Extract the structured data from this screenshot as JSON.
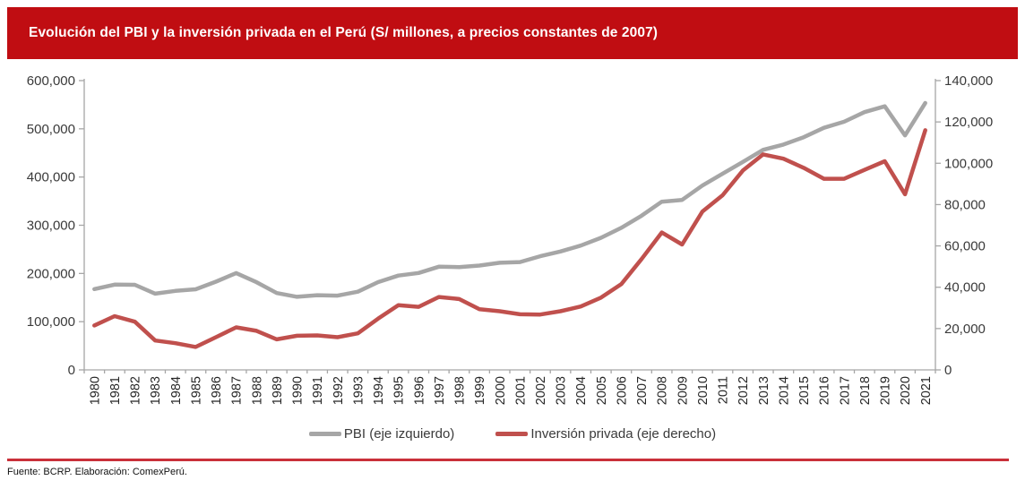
{
  "header": {
    "title": "Evolución del PBI y la inversión privada en el Perú (S/ millones, a precios constantes de 2007)",
    "background_color": "#C00D12",
    "text_color": "#FFFFFF"
  },
  "chart_data": {
    "type": "line",
    "title": "Evolución del PBI y la inversión privada en el Perú (S/ millones, a precios constantes de 2007)",
    "categories": [
      "1980",
      "1981",
      "1982",
      "1983",
      "1984",
      "1985",
      "1986",
      "1987",
      "1988",
      "1989",
      "1990",
      "1991",
      "1992",
      "1993",
      "1994",
      "1995",
      "1996",
      "1997",
      "1998",
      "1999",
      "2000",
      "2001",
      "2002",
      "2003",
      "2004",
      "2005",
      "2006",
      "2007",
      "2008",
      "2009",
      "2010",
      "2011",
      "2012",
      "2013",
      "2014",
      "2015",
      "2016",
      "2017",
      "2018",
      "2019",
      "2020",
      "2021"
    ],
    "series": [
      {
        "name": "PBI (eje izquierdo)",
        "axis": "left",
        "color": "#A6A6A6",
        "values": [
          167596,
          176901,
          176507,
          158136,
          163842,
          167219,
          182981,
          200778,
          181822,
          159436,
          151492,
          154854,
          154017,
          162093,
          182044,
          195536,
          201009,
          214028,
          213190,
          216377,
          222207,
          223580,
          235773,
          245593,
          257770,
          273971,
          294598,
          319693,
          348923,
          352584,
          382380,
          407052,
          431273,
          456449,
          467376,
          482676,
          502191,
          514655,
          534665,
          546605,
          486403,
          553590
        ]
      },
      {
        "name": "Inversión privada (eje derecho)",
        "axis": "right",
        "color": "#C0504D",
        "values": [
          21500,
          26000,
          23300,
          14200,
          12900,
          11100,
          15800,
          20600,
          18900,
          14800,
          16500,
          16700,
          15800,
          17700,
          24800,
          31300,
          30500,
          35300,
          34300,
          29400,
          28400,
          26900,
          26800,
          28400,
          30700,
          35000,
          41500,
          53600,
          66500,
          60700,
          76600,
          84500,
          96500,
          104300,
          102200,
          97800,
          92500,
          92500,
          96800,
          101000,
          85000,
          116000
        ]
      }
    ],
    "left_axis": {
      "min": 0,
      "max": 600000,
      "tick_step": 100000
    },
    "right_axis": {
      "min": 0,
      "max": 140000,
      "tick_step": 20000
    },
    "grid": false,
    "legend_position": "bottom",
    "axis_color": "#A6A6A6"
  },
  "legend": {
    "items": [
      {
        "label": "PBI (eje izquierdo)",
        "color": "#A6A6A6"
      },
      {
        "label": "Inversión privada (eje derecho)",
        "color": "#C0504D"
      }
    ]
  },
  "footer": {
    "source": "Fuente: BCRP. Elaboración: ComexPerú.",
    "divider_color": "#C9303A"
  }
}
